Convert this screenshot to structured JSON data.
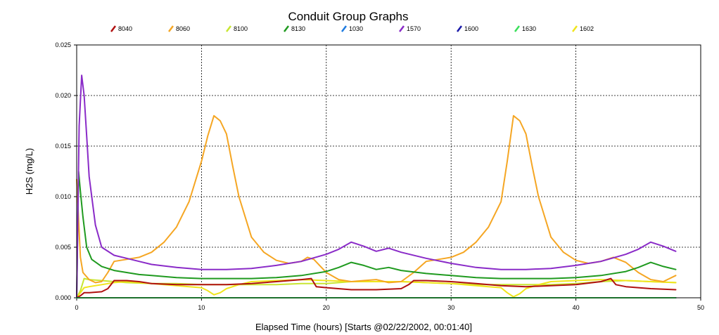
{
  "chart_data": {
    "type": "line",
    "title": "Conduit Group Graphs",
    "xlabel": "Elapsed Time (hours) [Starts @02/22/2002, 00:01:40]",
    "ylabel": "H2S (mg/L)",
    "xlim": [
      0,
      50
    ],
    "ylim": [
      0,
      0.025
    ],
    "xticks": [
      0,
      10,
      20,
      30,
      40,
      50
    ],
    "yticks": [
      0.0,
      0.005,
      0.01,
      0.015,
      0.02,
      0.025
    ],
    "ytick_labels": [
      "0.000",
      "0.005",
      "0.010",
      "0.015",
      "0.020",
      "0.025"
    ],
    "grid": true,
    "legend_position": "top",
    "series": [
      {
        "name": "8040",
        "color": "#b01010",
        "x": [
          0,
          0.3,
          0.6,
          1,
          2,
          2.5,
          3,
          4,
          5,
          6,
          8,
          10,
          12,
          14,
          16,
          18,
          18.8,
          19.2,
          20,
          22,
          24,
          26,
          26.6,
          27,
          28,
          30,
          32,
          34,
          36,
          38,
          40,
          42,
          42.8,
          43.2,
          44,
          46,
          48
        ],
        "y": [
          0,
          0.0002,
          0.0005,
          0.0005,
          0.0006,
          0.0009,
          0.0017,
          0.0017,
          0.0016,
          0.0014,
          0.0013,
          0.0013,
          0.0013,
          0.0014,
          0.0016,
          0.0018,
          0.0019,
          0.0011,
          0.001,
          0.0008,
          0.0008,
          0.0009,
          0.0013,
          0.0017,
          0.0017,
          0.0016,
          0.0014,
          0.0012,
          0.0011,
          0.0012,
          0.0013,
          0.0016,
          0.0019,
          0.0013,
          0.0011,
          0.0009,
          0.0008
        ]
      },
      {
        "name": "8060",
        "color": "#f5a623",
        "x": [
          0,
          0.3,
          0.5,
          1,
          1.5,
          2,
          2.5,
          3,
          4,
          5,
          6,
          7,
          8,
          9,
          10,
          10.5,
          11,
          11.5,
          12,
          12.5,
          13,
          14,
          15,
          16,
          17,
          18,
          18.5,
          19,
          20,
          21,
          22,
          23,
          24,
          25,
          26,
          27,
          28,
          29,
          30,
          31,
          32,
          33,
          34,
          34.5,
          35,
          35.5,
          36,
          36.5,
          37,
          38,
          39,
          40,
          41,
          42,
          43,
          44,
          45,
          46,
          47,
          48
        ],
        "y": [
          0.0117,
          0.004,
          0.0025,
          0.0018,
          0.0015,
          0.0016,
          0.0025,
          0.0036,
          0.0038,
          0.004,
          0.0045,
          0.0055,
          0.007,
          0.0095,
          0.0135,
          0.016,
          0.018,
          0.0175,
          0.0162,
          0.013,
          0.01,
          0.006,
          0.0045,
          0.0037,
          0.0034,
          0.0036,
          0.004,
          0.0038,
          0.0025,
          0.0018,
          0.0016,
          0.0017,
          0.0018,
          0.0015,
          0.0016,
          0.0025,
          0.0036,
          0.0038,
          0.004,
          0.0045,
          0.0055,
          0.007,
          0.0095,
          0.0135,
          0.018,
          0.0175,
          0.0162,
          0.013,
          0.01,
          0.006,
          0.0045,
          0.0037,
          0.0034,
          0.0036,
          0.004,
          0.0035,
          0.0025,
          0.0018,
          0.0016,
          0.0022
        ]
      },
      {
        "name": "8100",
        "color": "#c8e632",
        "x": [
          0,
          0.3,
          0.6,
          1,
          2,
          3,
          4,
          6,
          8,
          10,
          12,
          14,
          16,
          18,
          20,
          22,
          24,
          26,
          28,
          30,
          32,
          34,
          36,
          38,
          40,
          42,
          44,
          46,
          48
        ],
        "y": [
          0,
          0.0007,
          0.0019,
          0.0018,
          0.0017,
          0.0016,
          0.0015,
          0.0014,
          0.0014,
          0.0013,
          0.0013,
          0.0013,
          0.0013,
          0.0014,
          0.0014,
          0.0016,
          0.0016,
          0.0016,
          0.0015,
          0.0014,
          0.0013,
          0.0013,
          0.0013,
          0.0013,
          0.0014,
          0.0016,
          0.0017,
          0.0016,
          0.0015
        ]
      },
      {
        "name": "8130",
        "color": "#1f9a1f",
        "x": [
          0,
          0.15,
          0.3,
          0.5,
          0.8,
          1.2,
          2,
          3,
          4,
          5,
          6,
          8,
          10,
          12,
          14,
          16,
          18,
          20,
          21,
          22,
          23,
          24,
          25,
          26,
          28,
          30,
          32,
          34,
          36,
          38,
          40,
          42,
          44,
          45,
          46,
          47,
          48
        ],
        "y": [
          0,
          0.0125,
          0.0105,
          0.008,
          0.005,
          0.0038,
          0.0031,
          0.0027,
          0.0025,
          0.0023,
          0.0022,
          0.002,
          0.0019,
          0.0019,
          0.0019,
          0.002,
          0.0022,
          0.0026,
          0.003,
          0.0035,
          0.0032,
          0.0028,
          0.003,
          0.0027,
          0.0024,
          0.0022,
          0.002,
          0.0019,
          0.0019,
          0.0019,
          0.002,
          0.0022,
          0.0026,
          0.003,
          0.0035,
          0.0031,
          0.0028
        ]
      },
      {
        "name": "1030",
        "color": "#1e7be0",
        "x": [
          0,
          48
        ],
        "y": [
          0,
          0
        ]
      },
      {
        "name": "1570",
        "color": "#8a2bc8",
        "x": [
          0,
          0.2,
          0.4,
          0.6,
          0.8,
          1,
          1.5,
          2,
          3,
          4,
          5,
          6,
          8,
          10,
          12,
          14,
          16,
          18,
          20,
          21,
          22,
          23,
          24,
          25,
          26,
          28,
          30,
          32,
          34,
          36,
          38,
          40,
          42,
          44,
          45,
          46,
          47,
          48
        ],
        "y": [
          0,
          0.017,
          0.022,
          0.02,
          0.016,
          0.012,
          0.0072,
          0.005,
          0.0042,
          0.0039,
          0.0036,
          0.0033,
          0.003,
          0.0028,
          0.0028,
          0.0029,
          0.0032,
          0.0036,
          0.0043,
          0.0048,
          0.0055,
          0.0051,
          0.0046,
          0.0049,
          0.0045,
          0.0039,
          0.0034,
          0.003,
          0.0028,
          0.0028,
          0.0029,
          0.0032,
          0.0036,
          0.0043,
          0.0048,
          0.0055,
          0.0051,
          0.0046
        ]
      },
      {
        "name": "1600",
        "color": "#1a1aa8",
        "x": [
          0,
          48
        ],
        "y": [
          0,
          0
        ]
      },
      {
        "name": "1630",
        "color": "#3adf5a",
        "x": [
          0,
          48
        ],
        "y": [
          0,
          0
        ]
      },
      {
        "name": "1602",
        "color": "#f0e51c",
        "x": [
          0,
          0.3,
          0.6,
          1,
          2,
          3,
          4,
          5,
          6,
          8,
          9,
          10,
          10.5,
          11,
          11.5,
          12,
          13,
          14,
          16,
          18,
          20,
          22,
          24,
          26,
          28,
          30,
          32,
          33,
          34,
          34.5,
          35,
          35.5,
          36,
          37,
          38,
          40,
          42,
          44,
          46,
          48
        ],
        "y": [
          0,
          0.0005,
          0.001,
          0.0011,
          0.0013,
          0.0015,
          0.0016,
          0.0015,
          0.0014,
          0.0012,
          0.0011,
          0.001,
          0.0007,
          0.0003,
          0.0005,
          0.0009,
          0.0013,
          0.0016,
          0.0017,
          0.0018,
          0.0017,
          0.0016,
          0.0016,
          0.0016,
          0.0015,
          0.0014,
          0.0012,
          0.0011,
          0.001,
          0.0005,
          0.0001,
          0.0004,
          0.0009,
          0.0013,
          0.0016,
          0.0017,
          0.0018,
          0.0017,
          0.0016,
          0.0015
        ]
      }
    ]
  }
}
